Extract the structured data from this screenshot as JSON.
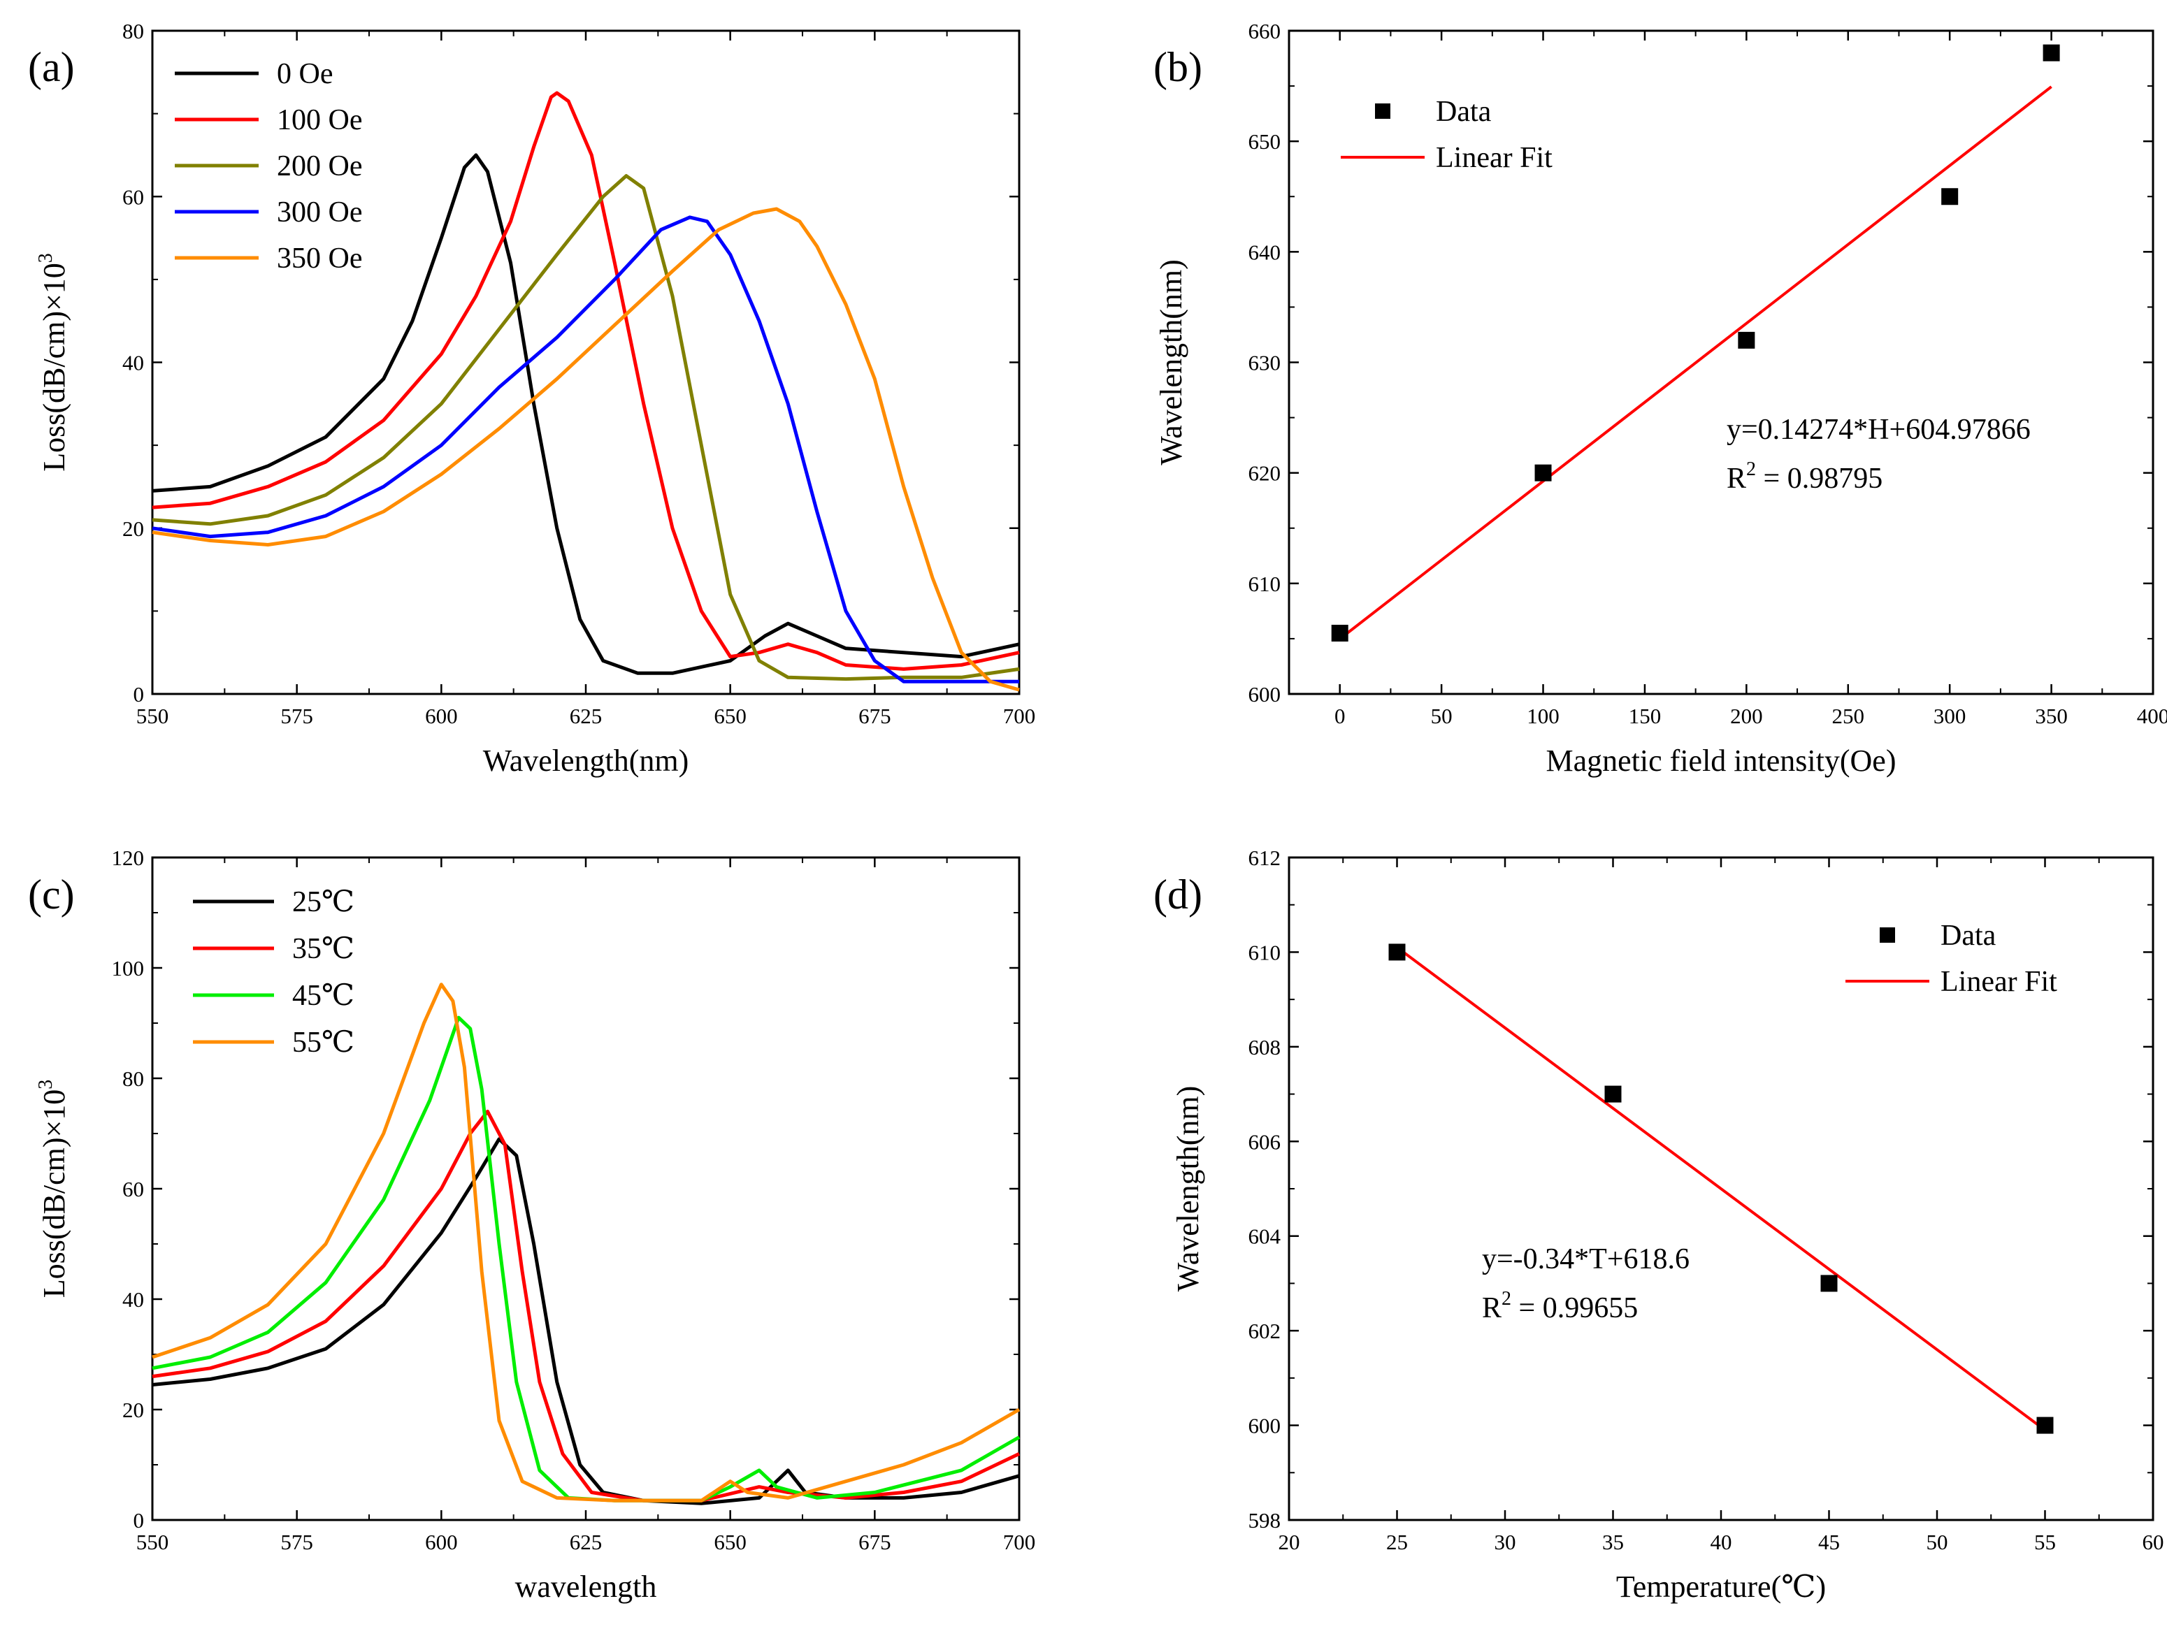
{
  "chart_data": [
    {
      "panel_label": "(a)",
      "type": "line",
      "xlabel": "Wavelength(nm)",
      "ylabel": "Loss(dB/cm)×10",
      "ylabel_sup": "3",
      "xlim": [
        550,
        700
      ],
      "ylim": [
        0,
        80
      ],
      "xticks": [
        550,
        575,
        600,
        625,
        650,
        675,
        700
      ],
      "yticks": [
        0,
        20,
        40,
        60,
        80
      ],
      "series": [
        {
          "name": "0 Oe",
          "color": "#000000",
          "points": [
            [
              550,
              24.5
            ],
            [
              560,
              25
            ],
            [
              570,
              27.5
            ],
            [
              580,
              31
            ],
            [
              590,
              38
            ],
            [
              595,
              45
            ],
            [
              600,
              55
            ],
            [
              604,
              63.5
            ],
            [
              606,
              65
            ],
            [
              608,
              63
            ],
            [
              612,
              52
            ],
            [
              616,
              35
            ],
            [
              620,
              20
            ],
            [
              624,
              9
            ],
            [
              628,
              4
            ],
            [
              634,
              2.5
            ],
            [
              640,
              2.5
            ],
            [
              650,
              4
            ],
            [
              656,
              7
            ],
            [
              660,
              8.5
            ],
            [
              665,
              7
            ],
            [
              670,
              5.5
            ],
            [
              680,
              5
            ],
            [
              690,
              4.5
            ],
            [
              700,
              6
            ]
          ]
        },
        {
          "name": "100 Oe",
          "color": "#ff0000",
          "points": [
            [
              550,
              22.5
            ],
            [
              560,
              23
            ],
            [
              570,
              25
            ],
            [
              580,
              28
            ],
            [
              590,
              33
            ],
            [
              600,
              41
            ],
            [
              606,
              48
            ],
            [
              612,
              57
            ],
            [
              616,
              66
            ],
            [
              619,
              72
            ],
            [
              620,
              72.5
            ],
            [
              622,
              71.5
            ],
            [
              626,
              65
            ],
            [
              630,
              52
            ],
            [
              635,
              35
            ],
            [
              640,
              20
            ],
            [
              645,
              10
            ],
            [
              650,
              4.5
            ],
            [
              655,
              5
            ],
            [
              660,
              6
            ],
            [
              665,
              5
            ],
            [
              670,
              3.5
            ],
            [
              680,
              3
            ],
            [
              690,
              3.5
            ],
            [
              700,
              5
            ]
          ]
        },
        {
          "name": "200 Oe",
          "color": "#808000",
          "points": [
            [
              550,
              21
            ],
            [
              560,
              20.5
            ],
            [
              570,
              21.5
            ],
            [
              580,
              24
            ],
            [
              590,
              28.5
            ],
            [
              600,
              35
            ],
            [
              610,
              44
            ],
            [
              620,
              53
            ],
            [
              628,
              60
            ],
            [
              632,
              62.5
            ],
            [
              635,
              61
            ],
            [
              640,
              48
            ],
            [
              645,
              30
            ],
            [
              650,
              12
            ],
            [
              655,
              4
            ],
            [
              660,
              2
            ],
            [
              670,
              1.8
            ],
            [
              680,
              2
            ],
            [
              690,
              2
            ],
            [
              700,
              3
            ]
          ]
        },
        {
          "name": "300 Oe",
          "color": "#0000ff",
          "points": [
            [
              550,
              20
            ],
            [
              560,
              19
            ],
            [
              570,
              19.5
            ],
            [
              580,
              21.5
            ],
            [
              590,
              25
            ],
            [
              600,
              30
            ],
            [
              610,
              37
            ],
            [
              620,
              43
            ],
            [
              630,
              50
            ],
            [
              638,
              56
            ],
            [
              643,
              57.5
            ],
            [
              646,
              57
            ],
            [
              650,
              53
            ],
            [
              655,
              45
            ],
            [
              660,
              35
            ],
            [
              665,
              22
            ],
            [
              670,
              10
            ],
            [
              675,
              4
            ],
            [
              680,
              1.5
            ],
            [
              690,
              1.5
            ],
            [
              700,
              1.5
            ]
          ]
        },
        {
          "name": "350 Oe",
          "color": "#ff8c00",
          "points": [
            [
              550,
              19.5
            ],
            [
              560,
              18.5
            ],
            [
              570,
              18
            ],
            [
              580,
              19
            ],
            [
              590,
              22
            ],
            [
              600,
              26.5
            ],
            [
              610,
              32
            ],
            [
              620,
              38
            ],
            [
              630,
              44.5
            ],
            [
              640,
              51
            ],
            [
              648,
              56
            ],
            [
              654,
              58
            ],
            [
              658,
              58.5
            ],
            [
              662,
              57
            ],
            [
              665,
              54
            ],
            [
              670,
              47
            ],
            [
              675,
              38
            ],
            [
              680,
              25
            ],
            [
              685,
              14
            ],
            [
              690,
              5
            ],
            [
              695,
              1.5
            ],
            [
              700,
              0.5
            ]
          ]
        }
      ]
    },
    {
      "panel_label": "(b)",
      "type": "scatter",
      "xlabel": "Magnetic field intensity(Oe)",
      "ylabel": "Wavelength(nm)",
      "xlim": [
        -25,
        400
      ],
      "ylim": [
        600,
        660
      ],
      "xticks": [
        0,
        50,
        100,
        150,
        200,
        250,
        300,
        350,
        400
      ],
      "yticks": [
        600,
        610,
        620,
        630,
        640,
        650,
        660
      ],
      "points": [
        [
          0,
          605.5
        ],
        [
          100,
          620
        ],
        [
          200,
          632
        ],
        [
          300,
          645
        ],
        [
          350,
          658
        ]
      ],
      "fit": {
        "x": [
          0,
          350
        ],
        "y": [
          604.97866,
          654.93766
        ],
        "color": "#ff0000"
      },
      "legend": {
        "data": "Data",
        "fit": "Linear Fit"
      },
      "equation": "y=0.14274*H+604.97866",
      "r2_label": "R",
      "r2_value": " = 0.98795"
    },
    {
      "panel_label": "(c)",
      "type": "line",
      "xlabel": "wavelength",
      "ylabel": "Loss(dB/cm)×10",
      "ylabel_sup": "3",
      "xlim": [
        550,
        700
      ],
      "ylim": [
        0,
        120
      ],
      "xticks": [
        550,
        575,
        600,
        625,
        650,
        675,
        700
      ],
      "yticks": [
        0,
        20,
        40,
        60,
        80,
        100,
        120
      ],
      "series": [
        {
          "name": "25℃",
          "color": "#000000",
          "points": [
            [
              550,
              24.5
            ],
            [
              560,
              25.5
            ],
            [
              570,
              27.5
            ],
            [
              580,
              31
            ],
            [
              590,
              39
            ],
            [
              600,
              52
            ],
            [
              606,
              62
            ],
            [
              610,
              69
            ],
            [
              613,
              66
            ],
            [
              616,
              50
            ],
            [
              620,
              25
            ],
            [
              624,
              10
            ],
            [
              628,
              5
            ],
            [
              635,
              3.5
            ],
            [
              645,
              3
            ],
            [
              655,
              4
            ],
            [
              660,
              9
            ],
            [
              663,
              5
            ],
            [
              670,
              4
            ],
            [
              680,
              4
            ],
            [
              690,
              5
            ],
            [
              700,
              8
            ]
          ]
        },
        {
          "name": "35℃",
          "color": "#ff0000",
          "points": [
            [
              550,
              26
            ],
            [
              560,
              27.5
            ],
            [
              570,
              30.5
            ],
            [
              580,
              36
            ],
            [
              590,
              46
            ],
            [
              600,
              60
            ],
            [
              605,
              70
            ],
            [
              608,
              74
            ],
            [
              611,
              68
            ],
            [
              614,
              45
            ],
            [
              617,
              25
            ],
            [
              621,
              12
            ],
            [
              626,
              5
            ],
            [
              635,
              3.5
            ],
            [
              645,
              3.5
            ],
            [
              655,
              6
            ],
            [
              660,
              5
            ],
            [
              670,
              4
            ],
            [
              680,
              5
            ],
            [
              690,
              7
            ],
            [
              700,
              12
            ]
          ]
        },
        {
          "name": "45℃",
          "color": "#00ee00",
          "points": [
            [
              550,
              27.5
            ],
            [
              560,
              29.5
            ],
            [
              570,
              34
            ],
            [
              580,
              43
            ],
            [
              590,
              58
            ],
            [
              598,
              76
            ],
            [
              603,
              91
            ],
            [
              605,
              89
            ],
            [
              607,
              78
            ],
            [
              610,
              50
            ],
            [
              613,
              25
            ],
            [
              617,
              9
            ],
            [
              622,
              4
            ],
            [
              630,
              3.5
            ],
            [
              645,
              3.5
            ],
            [
              650,
              6
            ],
            [
              655,
              9
            ],
            [
              658,
              6
            ],
            [
              665,
              4
            ],
            [
              675,
              5
            ],
            [
              690,
              9
            ],
            [
              700,
              15
            ]
          ]
        },
        {
          "name": "55℃",
          "color": "#ff8c00",
          "points": [
            [
              550,
              29.5
            ],
            [
              560,
              33
            ],
            [
              570,
              39
            ],
            [
              580,
              50
            ],
            [
              590,
              70
            ],
            [
              597,
              90
            ],
            [
              600,
              97
            ],
            [
              602,
              94
            ],
            [
              604,
              82
            ],
            [
              607,
              45
            ],
            [
              610,
              18
            ],
            [
              614,
              7
            ],
            [
              620,
              4
            ],
            [
              630,
              3.5
            ],
            [
              645,
              3.5
            ],
            [
              650,
              7
            ],
            [
              653,
              5
            ],
            [
              660,
              4
            ],
            [
              670,
              7
            ],
            [
              680,
              10
            ],
            [
              690,
              14
            ],
            [
              700,
              20
            ]
          ]
        }
      ]
    },
    {
      "panel_label": "(d)",
      "type": "scatter",
      "xlabel": "Temperature(℃)",
      "ylabel": "Wavelength(nm)",
      "xlim": [
        20,
        60
      ],
      "ylim": [
        598,
        612
      ],
      "xticks": [
        20,
        25,
        30,
        35,
        40,
        45,
        50,
        55,
        60
      ],
      "yticks": [
        598,
        600,
        602,
        604,
        606,
        608,
        610,
        612
      ],
      "points": [
        [
          25,
          610
        ],
        [
          35,
          607
        ],
        [
          45,
          603
        ],
        [
          55,
          600
        ]
      ],
      "fit": {
        "x": [
          25,
          55
        ],
        "y": [
          610.1,
          599.9
        ],
        "color": "#ff0000"
      },
      "legend": {
        "data": "Data",
        "fit": "Linear Fit"
      },
      "equation": "y=-0.34*T+618.6",
      "r2_label": "R",
      "r2_value": " = 0.99655"
    }
  ]
}
